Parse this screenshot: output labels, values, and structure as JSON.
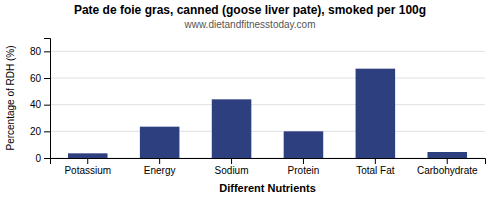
{
  "chart_data": {
    "type": "bar",
    "title": "Pate de foie gras, canned (goose liver pate), smoked per 100g",
    "subtitle": "www.dietandfitnesstoday.com",
    "xlabel": "Different Nutrients",
    "ylabel": "Percentage of RDH (%)",
    "categories": [
      "Potassium",
      "Energy",
      "Sodium",
      "Protein",
      "Total Fat",
      "Carbohydrate"
    ],
    "values": [
      3.5,
      23.5,
      44.0,
      20.0,
      67.0,
      4.5
    ],
    "color": "#2e3f80",
    "ylim": [
      0,
      90
    ],
    "yticks": [
      0,
      20,
      40,
      60,
      80
    ],
    "grid": true
  }
}
